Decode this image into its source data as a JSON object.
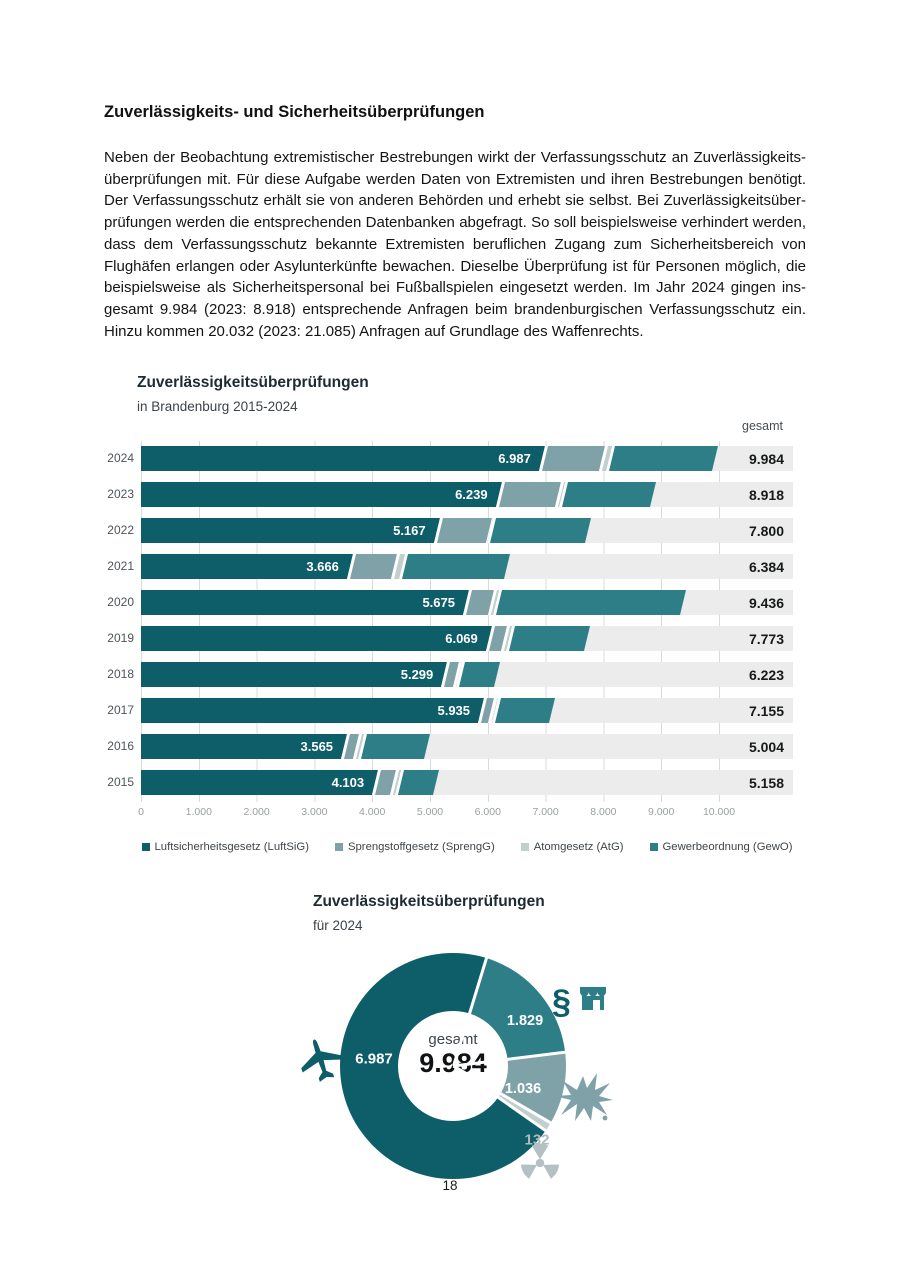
{
  "page": {
    "heading": "Zuverlässigkeits- und Sicherheitsüberprüfungen",
    "paragraph_lines": [
      "Neben der Beobachtung extremistischer Bestrebungen wirkt der Verfassungsschutz an Zuverlässigkeits-",
      "überprüfungen mit. Für diese Aufgabe werden Daten von Extremisten und ihren Bestrebungen benötigt.",
      "Der Verfassungsschutz erhält sie von anderen Behörden und erhebt sie selbst. Bei Zuverlässigkeitsüber-",
      "prüfungen werden die entsprechenden Datenbanken abgefragt. So soll beispielsweise verhindert werden,",
      "dass dem Verfassungsschutz bekannte Extremisten beruflichen Zugang zum Sicherheitsbereich von",
      "Flughäfen erlangen oder Asylunterkünfte bewachen. Dieselbe Überprüfung ist für Personen möglich, die",
      "beispielsweise als Sicherheitspersonal bei Fußballspielen eingesetzt werden. Im Jahr 2024 gingen ins-",
      "gesamt 9.984 (2023: 8.918) entsprechende Anfragen beim brandenburgischen Verfassungsschutz ein.",
      "Hinzu kommen 20.032 (2023: 21.085) Anfragen auf Grundlage des Waffenrechts."
    ],
    "page_number": "18"
  },
  "colors": {
    "luftsig": "#0e5e69",
    "sprengg": "#7fa2a9",
    "atg": "#c2cfcf",
    "gewo": "#2e7e88",
    "bar_background": "#ebeceb",
    "footer_bar": "#0e5e69"
  },
  "chart_data": [
    {
      "type": "bar",
      "subtype": "horizontal-stacked",
      "title": "Zuverlässigkeitsüberprüfungen",
      "subtitle": "in Brandenburg 2015-2024",
      "total_column_header": "gesamt",
      "categories": [
        "2024",
        "2023",
        "2022",
        "2021",
        "2020",
        "2019",
        "2018",
        "2017",
        "2016",
        "2015"
      ],
      "series": [
        {
          "name": "Luftsicherheitsgesetz (LuftSiG)",
          "color": "#0e5e69",
          "values": [
            6987,
            6239,
            5167,
            3666,
            5675,
            6069,
            5299,
            5935,
            3565,
            4103
          ],
          "labels": [
            "6.987",
            "6.239",
            "5.167",
            "3.666",
            "5.675",
            "6.069",
            "5.299",
            "5.935",
            "3.565",
            "4.103"
          ]
        },
        {
          "name": "Sprengstoffgesetz (SprengG)",
          "color": "#7fa2a9",
          "values": [
            1036,
            1020,
            900,
            760,
            430,
            260,
            200,
            180,
            200,
            310
          ]
        },
        {
          "name": "Atomgesetz (AtG)",
          "color": "#c2cfcf",
          "values": [
            132,
            80,
            30,
            140,
            90,
            90,
            60,
            60,
            90,
            90
          ]
        },
        {
          "name": "Gewerbeordnung (GewO)",
          "color": "#2e7e88",
          "values": [
            1829,
            1579,
            1703,
            1818,
            3241,
            1354,
            664,
            980,
            1149,
            655
          ]
        }
      ],
      "totals": [
        9984,
        8918,
        7800,
        6384,
        9436,
        7773,
        6223,
        7155,
        5004,
        5158
      ],
      "total_labels": [
        "9.984",
        "8.918",
        "7.800",
        "6.384",
        "9.436",
        "7.773",
        "6.223",
        "7.155",
        "5.004",
        "5.158"
      ],
      "xlim": [
        0,
        10000
      ],
      "x_ticks": [
        "0",
        "1.000",
        "2.000",
        "3.000",
        "4.000",
        "5.000",
        "6.000",
        "7.000",
        "8.000",
        "9.000",
        "10.000"
      ],
      "grid": true,
      "legend_position": "bottom"
    },
    {
      "type": "pie",
      "subtype": "donut",
      "title": "Zuverlässigkeitsüberprüfungen",
      "subtitle": "für 2024",
      "center_label": "gesamt",
      "center_value": "9.984",
      "start_angle_deg": 17,
      "clockwise": true,
      "slices": [
        {
          "name": "Gewerbeordnung (GewO)",
          "value": 1829,
          "label": "1.829",
          "color": "#2e7e88",
          "icon": "paragraph-shop-icon"
        },
        {
          "name": "Sprengstoffgesetz (SprengG)",
          "value": 1036,
          "label": "1.036",
          "color": "#7fa2a9",
          "icon": "explosion-icon"
        },
        {
          "name": "Atomgesetz (AtG)",
          "value": 132,
          "label": "132",
          "color": "#c2cfcf",
          "icon": "radiation-icon"
        },
        {
          "name": "Luftsicherheitsgesetz (LuftSiG)",
          "value": 6987,
          "label": "6.987",
          "color": "#0e5e69",
          "icon": "airplane-icon"
        }
      ]
    }
  ]
}
